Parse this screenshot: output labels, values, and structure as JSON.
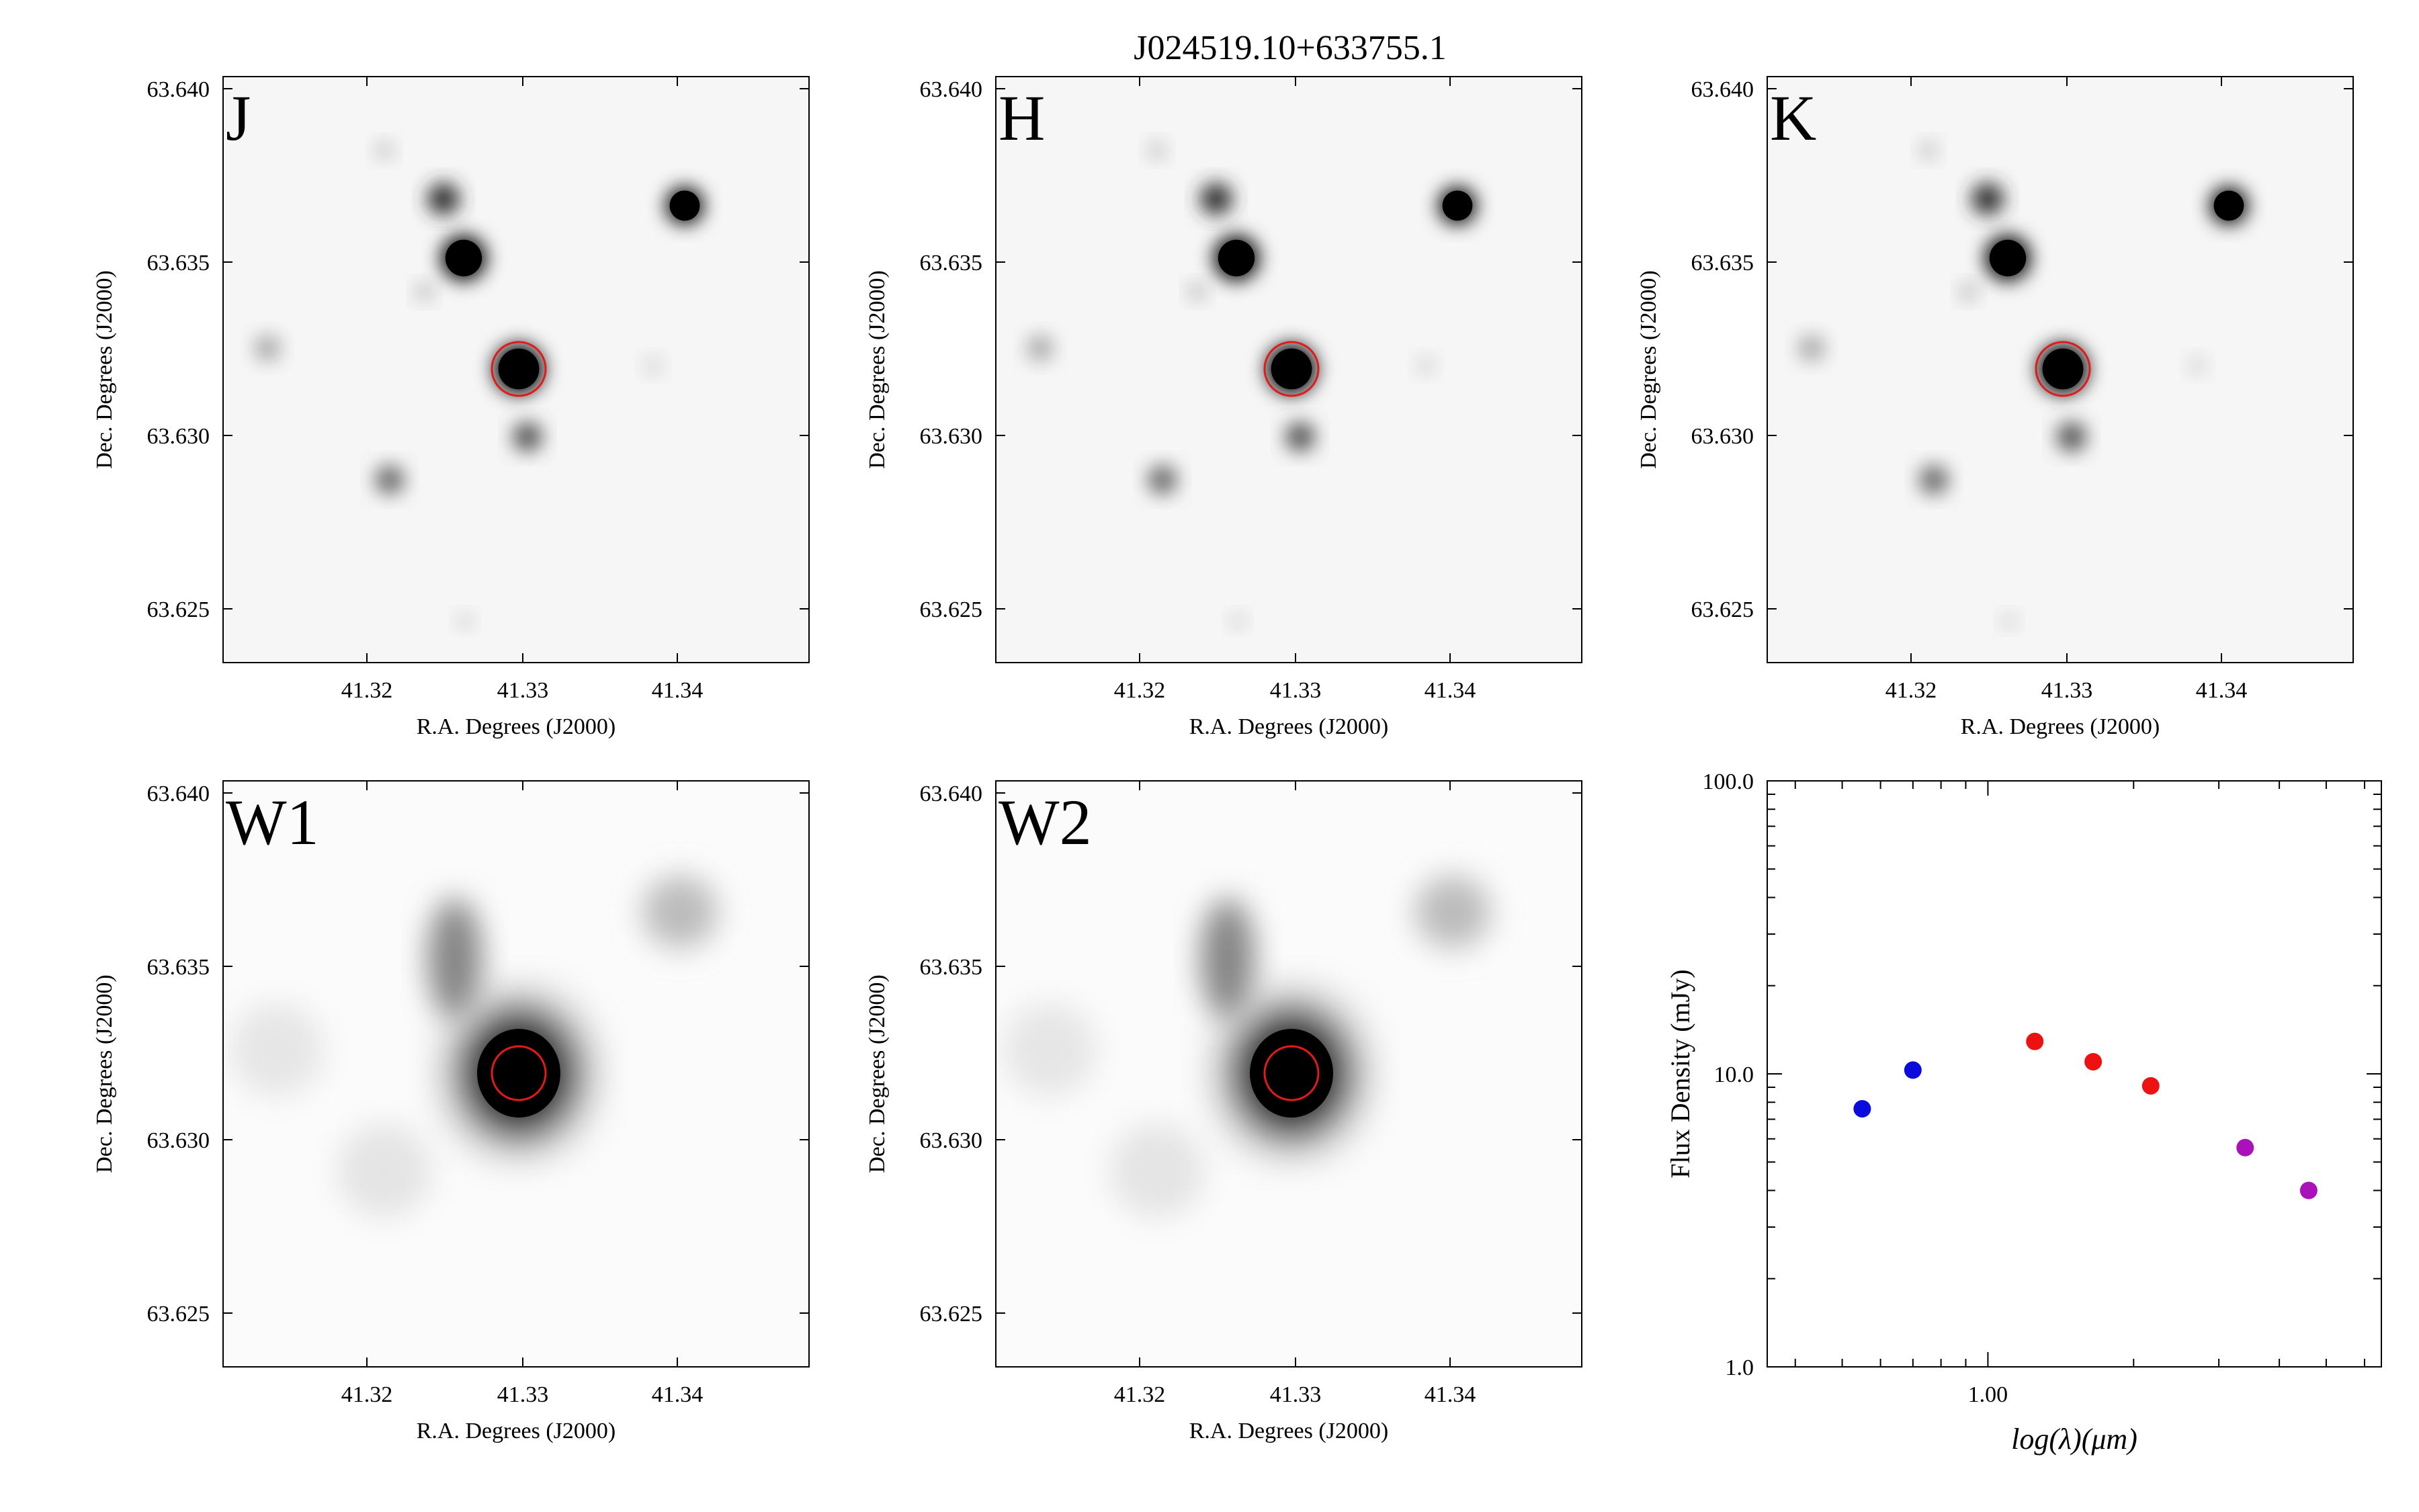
{
  "figure_title": "J024519.10+633755.1",
  "colors": {
    "band_label": "#ff22ff",
    "aperture": "#e21a1a",
    "sed_blue": "#0b0bdd",
    "sed_red": "#ee1111",
    "sed_purple": "#aa11bb"
  },
  "image_axes": {
    "xlabel": "R.A. Degrees (J2000)",
    "ylabel": "Dec. Degrees (J2000)",
    "x_ticks": [
      "41.32",
      "41.33",
      "41.34"
    ],
    "y_ticks": [
      "63.640",
      "63.635",
      "63.630",
      "63.625"
    ]
  },
  "panels": [
    {
      "band": "J",
      "style": "sharp"
    },
    {
      "band": "H",
      "style": "sharp"
    },
    {
      "band": "K",
      "style": "sharp"
    },
    {
      "band": "W1",
      "style": "wise"
    },
    {
      "band": "W2",
      "style": "wise"
    }
  ],
  "chart_data": {
    "type": "scatter",
    "title": "",
    "xlabel": "log(λ)(μm)",
    "ylabel": "Flux Density (mJy)",
    "x_scale": "log",
    "y_scale": "log",
    "xlim": [
      0.35,
      6.5
    ],
    "ylim": [
      1.0,
      100.0
    ],
    "x_tick_labels": [
      "1.00"
    ],
    "y_tick_labels": [
      "100.0",
      "10.0",
      "1.0"
    ],
    "series": [
      {
        "color": "#0b0bdd",
        "points": [
          {
            "x": 0.55,
            "y": 7.6
          },
          {
            "x": 0.7,
            "y": 10.3
          }
        ]
      },
      {
        "color": "#ee1111",
        "points": [
          {
            "x": 1.25,
            "y": 12.9
          },
          {
            "x": 1.65,
            "y": 11.0
          },
          {
            "x": 2.17,
            "y": 9.1
          }
        ]
      },
      {
        "color": "#aa11bb",
        "points": [
          {
            "x": 3.4,
            "y": 5.6
          },
          {
            "x": 4.6,
            "y": 4.0
          }
        ]
      }
    ]
  }
}
